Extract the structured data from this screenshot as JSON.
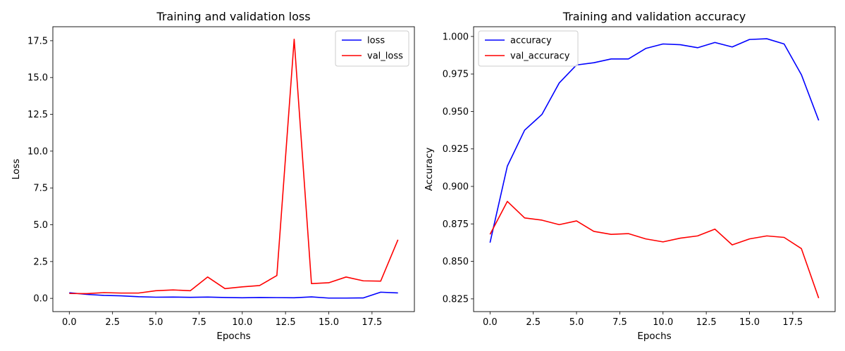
{
  "chart_data": [
    {
      "type": "line",
      "title": "Training and validation loss",
      "xlabel": "Epochs",
      "ylabel": "Loss",
      "xlim": [
        -0.95,
        19.95
      ],
      "ylim": [
        -0.9,
        18.45
      ],
      "xticks": [
        0.0,
        2.5,
        5.0,
        7.5,
        10.0,
        12.5,
        15.0,
        17.5
      ],
      "xtick_labels": [
        "0.0",
        "2.5",
        "5.0",
        "7.5",
        "10.0",
        "12.5",
        "15.0",
        "17.5"
      ],
      "yticks": [
        0.0,
        2.5,
        5.0,
        7.5,
        10.0,
        12.5,
        15.0,
        17.5
      ],
      "ytick_labels": [
        "0.0",
        "2.5",
        "5.0",
        "7.5",
        "10.0",
        "12.5",
        "15.0",
        "17.5"
      ],
      "grid": false,
      "legend_position": "top-right",
      "x": [
        0,
        1,
        2,
        3,
        4,
        5,
        6,
        7,
        8,
        9,
        10,
        11,
        12,
        13,
        14,
        15,
        16,
        17,
        18,
        19
      ],
      "series": [
        {
          "name": "loss",
          "color": "#0000ff",
          "values": [
            0.38,
            0.27,
            0.2,
            0.17,
            0.11,
            0.08,
            0.09,
            0.07,
            0.09,
            0.06,
            0.04,
            0.06,
            0.05,
            0.04,
            0.1,
            0.02,
            0.02,
            0.03,
            0.42,
            0.37
          ]
        },
        {
          "name": "val_loss",
          "color": "#ff0000",
          "values": [
            0.33,
            0.32,
            0.39,
            0.36,
            0.36,
            0.52,
            0.57,
            0.52,
            1.45,
            0.66,
            0.78,
            0.87,
            1.55,
            17.6,
            1.0,
            1.06,
            1.45,
            1.19,
            1.17,
            3.98
          ]
        }
      ]
    },
    {
      "type": "line",
      "title": "Training and validation accuracy",
      "xlabel": "Epochs",
      "ylabel": "Accuracy",
      "xlim": [
        -0.95,
        19.95
      ],
      "ylim": [
        0.8165,
        1.0065
      ],
      "xticks": [
        0.0,
        2.5,
        5.0,
        7.5,
        10.0,
        12.5,
        15.0,
        17.5
      ],
      "xtick_labels": [
        "0.0",
        "2.5",
        "5.0",
        "7.5",
        "10.0",
        "12.5",
        "15.0",
        "17.5"
      ],
      "yticks": [
        0.825,
        0.85,
        0.875,
        0.9,
        0.925,
        0.95,
        0.975,
        1.0
      ],
      "ytick_labels": [
        "0.825",
        "0.850",
        "0.875",
        "0.900",
        "0.925",
        "0.950",
        "0.975",
        "1.000"
      ],
      "grid": false,
      "legend_position": "top-left",
      "x": [
        0,
        1,
        2,
        3,
        4,
        5,
        6,
        7,
        8,
        9,
        10,
        11,
        12,
        13,
        14,
        15,
        16,
        17,
        18,
        19
      ],
      "series": [
        {
          "name": "accuracy",
          "color": "#0000ff",
          "values": [
            0.8625,
            0.9135,
            0.9375,
            0.948,
            0.969,
            0.981,
            0.9825,
            0.985,
            0.985,
            0.992,
            0.995,
            0.9945,
            0.9925,
            0.996,
            0.993,
            0.998,
            0.9985,
            0.995,
            0.9745,
            0.944
          ]
        },
        {
          "name": "val_accuracy",
          "color": "#ff0000",
          "values": [
            0.868,
            0.89,
            0.879,
            0.8775,
            0.8745,
            0.877,
            0.87,
            0.868,
            0.8685,
            0.865,
            0.863,
            0.8655,
            0.867,
            0.8715,
            0.861,
            0.865,
            0.867,
            0.866,
            0.8585,
            0.8255
          ]
        }
      ]
    }
  ]
}
